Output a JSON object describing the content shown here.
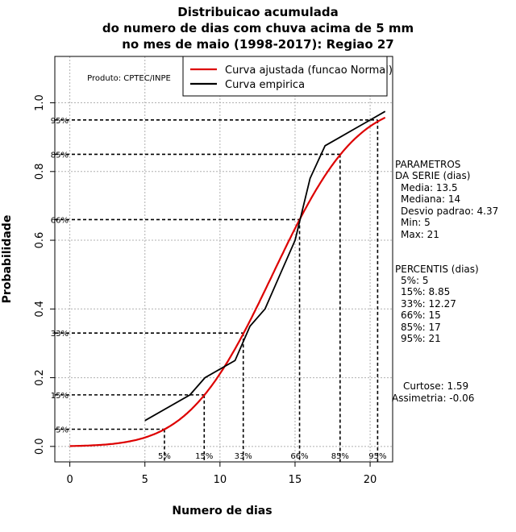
{
  "chart_data": {
    "type": "line",
    "title_lines": [
      "Distribuicao acumulada",
      "do numero de dias com chuva acima de 5 mm",
      "no mes de maio (1998-2017): Regiao 27"
    ],
    "xlabel": "Numero de dias",
    "ylabel": "Probabilidade",
    "xlim": [
      -1,
      21.5
    ],
    "ylim": [
      -0.045,
      1.135
    ],
    "x_ticks": [
      0,
      5,
      10,
      15,
      20
    ],
    "y_ticks": [
      0.0,
      0.2,
      0.4,
      0.6,
      0.8,
      1.0
    ],
    "y_tick_labels": [
      "0.0",
      "0.2",
      "0.4",
      "0.6",
      "0.8",
      "1.0"
    ],
    "grid": true,
    "credit": "Produto: CPTEC/INPE",
    "legend": {
      "position": "top-right",
      "items": [
        {
          "label": "Curva ajustada (funcao Normal)",
          "color": "#dd0000"
        },
        {
          "label": "Curva empirica",
          "color": "#000000"
        }
      ]
    },
    "normal_fit": {
      "mean": 13.5,
      "sd": 4.37,
      "x_range": [
        0,
        21
      ],
      "color": "#dd0000"
    },
    "series": [
      {
        "name": "Curva empirica",
        "color": "#000000",
        "x": [
          5,
          8,
          9,
          11,
          12,
          13,
          14,
          15,
          16,
          17,
          18,
          19,
          20,
          21
        ],
        "values": [
          0.075,
          0.15,
          0.2,
          0.25,
          0.35,
          0.4,
          0.5,
          0.6,
          0.78,
          0.875,
          0.9,
          0.925,
          0.95,
          0.975
        ]
      }
    ],
    "percentile_markers": [
      {
        "label": "5%",
        "p": 0.05,
        "x": 6.3
      },
      {
        "label": "15%",
        "p": 0.15,
        "x": 8.95
      },
      {
        "label": "33%",
        "p": 0.33,
        "x": 11.55
      },
      {
        "label": "66%",
        "p": 0.66,
        "x": 15.3
      },
      {
        "label": "85%",
        "p": 0.85,
        "x": 18.0
      },
      {
        "label": "95%",
        "p": 0.95,
        "x": 20.5
      }
    ],
    "parameters": {
      "heading_lines": [
        "PARAMETROS",
        "DA SERIE (dias)"
      ],
      "items": [
        "Media: 13.5",
        "Mediana: 14",
        "Desvio padrao: 4.37",
        "Min: 5",
        "Max: 21"
      ]
    },
    "percentis": {
      "heading": "PERCENTIS (dias)",
      "items": [
        "5%: 5",
        "15%: 8.85",
        "33%: 12.27",
        "66%: 15",
        "85%: 17",
        "95%: 21"
      ]
    },
    "shape": {
      "items": [
        "Curtose: 1.59",
        "Assimetria: -0.06"
      ]
    }
  }
}
